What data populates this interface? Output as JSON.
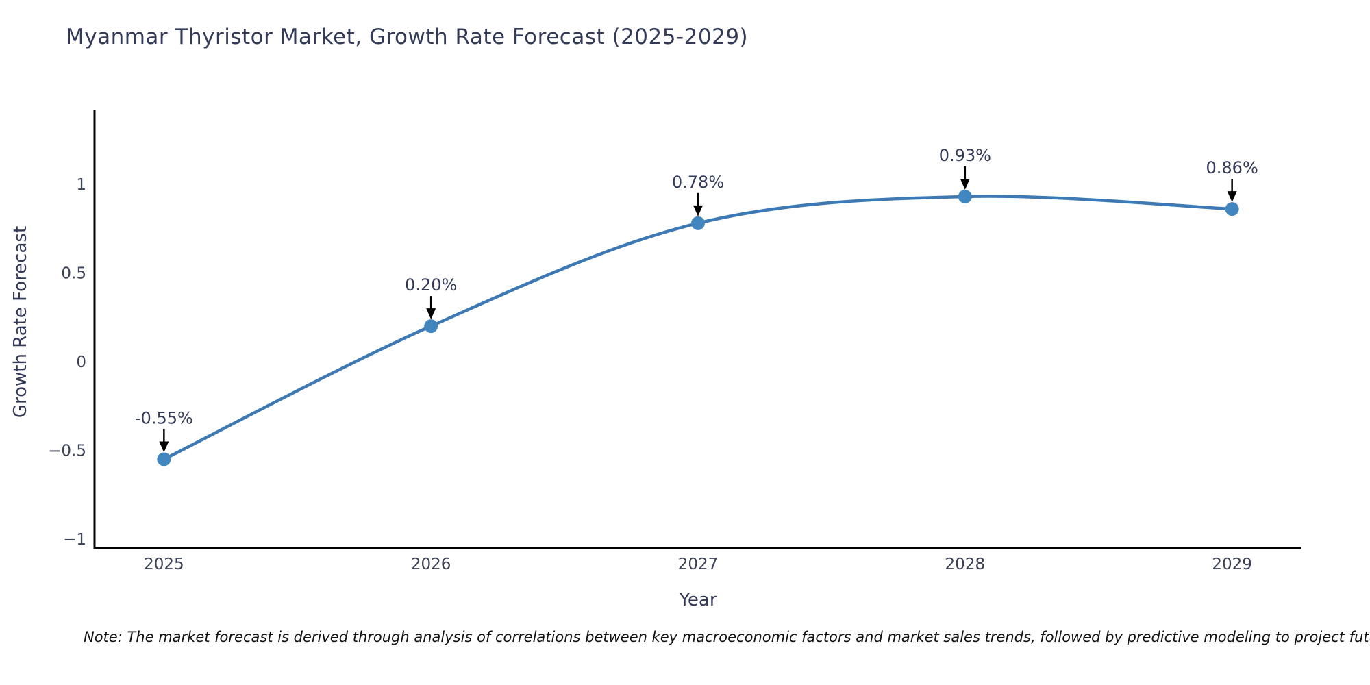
{
  "page": {
    "background_color": "#ffffff"
  },
  "chart_data": {
    "type": "line",
    "title": "Myanmar Thyristor Market, Growth Rate Forecast (2025-2029)",
    "xlabel": "Year",
    "ylabel": "Growth Rate Forecast",
    "x": [
      2025,
      2026,
      2027,
      2028,
      2029
    ],
    "y": [
      -0.55,
      0.2,
      0.78,
      0.93,
      0.86
    ],
    "point_labels": [
      "-0.55%",
      "0.20%",
      "0.78%",
      "0.93%",
      "0.86%"
    ],
    "xtick_labels": [
      "2025",
      "2026",
      "2027",
      "2028",
      "2029"
    ],
    "ytick_values": [
      1,
      0.5,
      0,
      -0.5,
      -1
    ],
    "ytick_labels": [
      "1",
      "0.5",
      "0",
      "−0.5",
      "−1"
    ],
    "xlim": [
      2024.74,
      2029.26
    ],
    "ylim": [
      -1.05,
      1.42
    ],
    "grid": false,
    "legend": "none",
    "line_smooth": true,
    "colors": {
      "line": "#3d7ab5",
      "marker": "#4286c0",
      "axis": "#000000",
      "tick_text": "#3b4156",
      "annotation_text": "#333a58",
      "annotation_arrow": "#000000"
    }
  },
  "note": {
    "text": "Note: The market forecast is derived through analysis of correlations between key macroeconomic factors and market sales trends, followed by predictive modeling to project future sa"
  }
}
